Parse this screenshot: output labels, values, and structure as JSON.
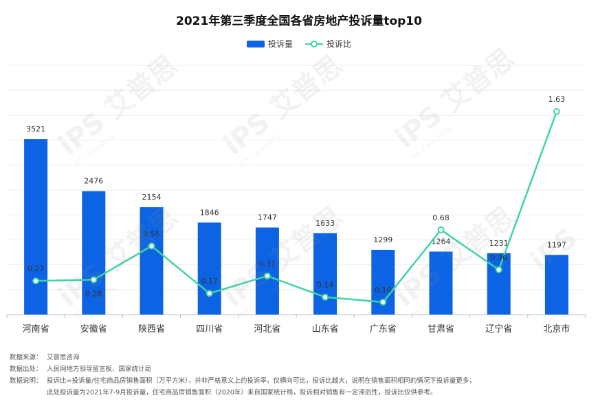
{
  "chart_data": {
    "type": "bar",
    "title": "2021年第三季度全国各省房地产投诉量top10",
    "categories": [
      "河南省",
      "安徽省",
      "陕西省",
      "四川省",
      "河北省",
      "山东省",
      "广东省",
      "甘肃省",
      "辽宁省",
      "北京市"
    ],
    "series": [
      {
        "name": "投诉量",
        "type": "bar",
        "color": "#0c63e4",
        "values": [
          3521,
          2476,
          2154,
          1846,
          1747,
          1633,
          1299,
          1264,
          1231,
          1197
        ],
        "labels": [
          "3521",
          "2476",
          "2154",
          "1846",
          "1747",
          "1633",
          "1299",
          "1264",
          "1231",
          "1197"
        ]
      },
      {
        "name": "投诉比",
        "type": "line",
        "color": "#3dd6a0",
        "values": [
          0.27,
          0.28,
          0.55,
          0.17,
          0.31,
          0.14,
          0.1,
          0.68,
          0.36,
          1.63
        ],
        "labels": [
          "0.27",
          "0.28",
          "0.55",
          "0.17",
          "0.31",
          "0.14",
          "0.10",
          "0.68",
          "0.36",
          "1.63"
        ]
      }
    ],
    "ylim_bar": [
      0,
      5000
    ],
    "ylim_line": [
      0,
      2.0
    ],
    "grid": true,
    "legend_position": "top-center"
  },
  "notes": [
    {
      "label": "数据来源：",
      "text": "艾普思咨询"
    },
    {
      "label": "数据出处：",
      "text": "人民网地方领导留言板、国家统计局"
    },
    {
      "label": "数据说明：",
      "text": "投诉比=投诉量/住宅商品房销售面积（万平方米），并非严格意义上的投诉率，仅横向可比，投诉比越大，说明在销售面积相同的情况下投诉量更多；"
    },
    {
      "label": "",
      "text": "此处投诉量为2021年7-9月投诉量，住宅商品房销售面积（2020年）来自国家统计局，投诉相对销售有一定滞后性，投诉比仅供参考。"
    }
  ],
  "watermark": {
    "text": "艾普思",
    "sub": "IPS Consulting"
  }
}
